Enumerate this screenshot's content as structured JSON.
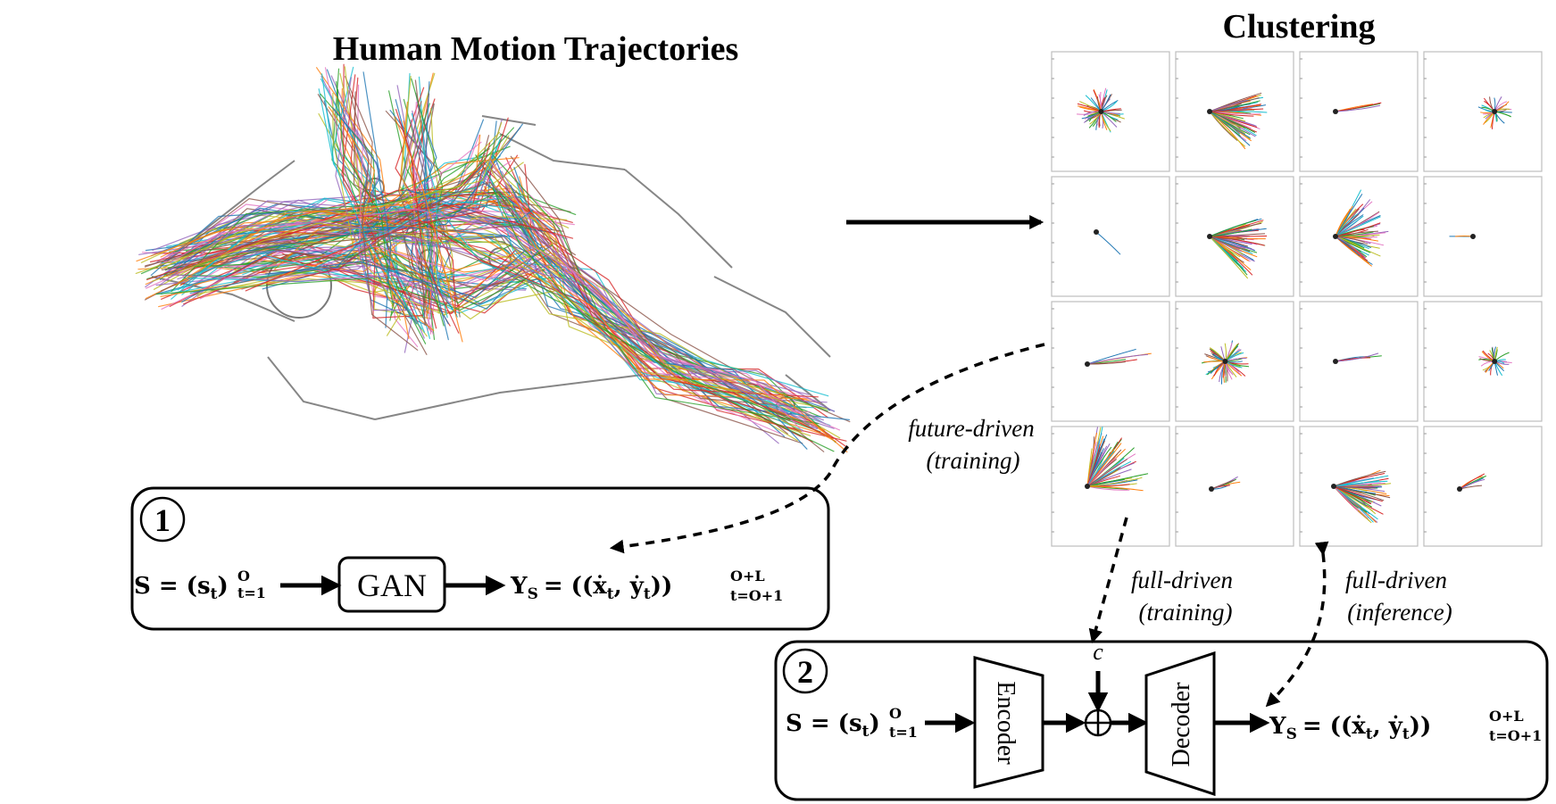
{
  "titles": {
    "left": "Human Motion Trajectories",
    "right": "Clustering"
  },
  "panel1": {
    "number": "1",
    "input_lhs": "S = (s",
    "input_sub": "t",
    "input_close": ")",
    "input_sup": "O",
    "input_range": "t=1",
    "model": "GAN",
    "output_lhs": "Y",
    "output_lhs_sub": "S",
    "output_eq": "= ((ẋ",
    "output_mid": ", ẏ",
    "output_close": "))",
    "output_sup": "O+L",
    "output_range": "t=O+1"
  },
  "panel2": {
    "number": "2",
    "input_lhs": "S = (s",
    "input_sub": "t",
    "input_close": ")",
    "input_sup": "O",
    "input_range": "t=1",
    "encoder": "Encoder",
    "decoder": "Decoder",
    "condition": "c",
    "output_lhs": "Y",
    "output_lhs_sub": "S",
    "output_eq": "= ((ẋ",
    "output_mid": ", ẏ",
    "output_close": "))",
    "output_sup": "O+L",
    "output_range": "t=O+1"
  },
  "annotations": {
    "future_driven": "future-driven",
    "future_training": "(training)",
    "full_driven_a": "full-driven",
    "full_training": "(training)",
    "full_driven_b": "full-driven",
    "full_inference": "(inference)"
  },
  "colors": {
    "trajectories": [
      "#1f77b4",
      "#ff7f0e",
      "#2ca02c",
      "#d62728",
      "#9467bd",
      "#8c564b",
      "#e377c2",
      "#17becf",
      "#bcbd22"
    ],
    "cell_border": "#bdbdbd",
    "stroke": "#000000"
  },
  "clusters": [
    {
      "kind": "burst"
    },
    {
      "kind": "fan-right"
    },
    {
      "kind": "line"
    },
    {
      "kind": "small-burst"
    },
    {
      "kind": "single"
    },
    {
      "kind": "fan-right"
    },
    {
      "kind": "burst-up"
    },
    {
      "kind": "single-left"
    },
    {
      "kind": "split"
    },
    {
      "kind": "burst"
    },
    {
      "kind": "line"
    },
    {
      "kind": "small-burst"
    },
    {
      "kind": "fan-up"
    },
    {
      "kind": "short"
    },
    {
      "kind": "fan-right"
    },
    {
      "kind": "short"
    }
  ]
}
